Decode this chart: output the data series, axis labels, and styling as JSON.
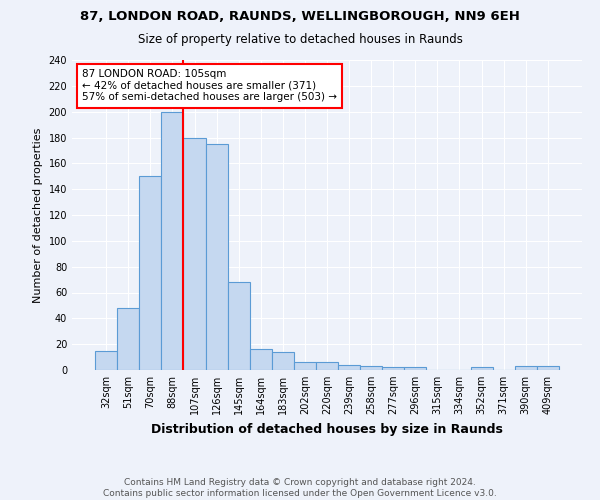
{
  "title1": "87, LONDON ROAD, RAUNDS, WELLINGBOROUGH, NN9 6EH",
  "title2": "Size of property relative to detached houses in Raunds",
  "xlabel": "Distribution of detached houses by size in Raunds",
  "ylabel": "Number of detached properties",
  "footer1": "Contains HM Land Registry data © Crown copyright and database right 2024.",
  "footer2": "Contains public sector information licensed under the Open Government Licence v3.0.",
  "categories": [
    "32sqm",
    "51sqm",
    "70sqm",
    "88sqm",
    "107sqm",
    "126sqm",
    "145sqm",
    "164sqm",
    "183sqm",
    "202sqm",
    "220sqm",
    "239sqm",
    "258sqm",
    "277sqm",
    "296sqm",
    "315sqm",
    "334sqm",
    "352sqm",
    "371sqm",
    "390sqm",
    "409sqm"
  ],
  "values": [
    15,
    48,
    150,
    200,
    180,
    175,
    68,
    16,
    14,
    6,
    6,
    4,
    3,
    2,
    2,
    0,
    0,
    2,
    0,
    3,
    3
  ],
  "bar_color": "#c5d8f0",
  "bar_edge_color": "#5b9bd5",
  "red_line_x": 3.5,
  "annotation_text1": "87 LONDON ROAD: 105sqm",
  "annotation_text2": "← 42% of detached houses are smaller (371)",
  "annotation_text3": "57% of semi-detached houses are larger (503) →",
  "annotation_box_color": "white",
  "annotation_edge_color": "red",
  "ylim": [
    0,
    240
  ],
  "background_color": "#eef2fa",
  "title1_fontsize": 9.5,
  "title2_fontsize": 8.5,
  "ylabel_fontsize": 8,
  "xlabel_fontsize": 9,
  "tick_fontsize": 7,
  "annotation_fontsize": 7.5,
  "footer_fontsize": 6.5
}
